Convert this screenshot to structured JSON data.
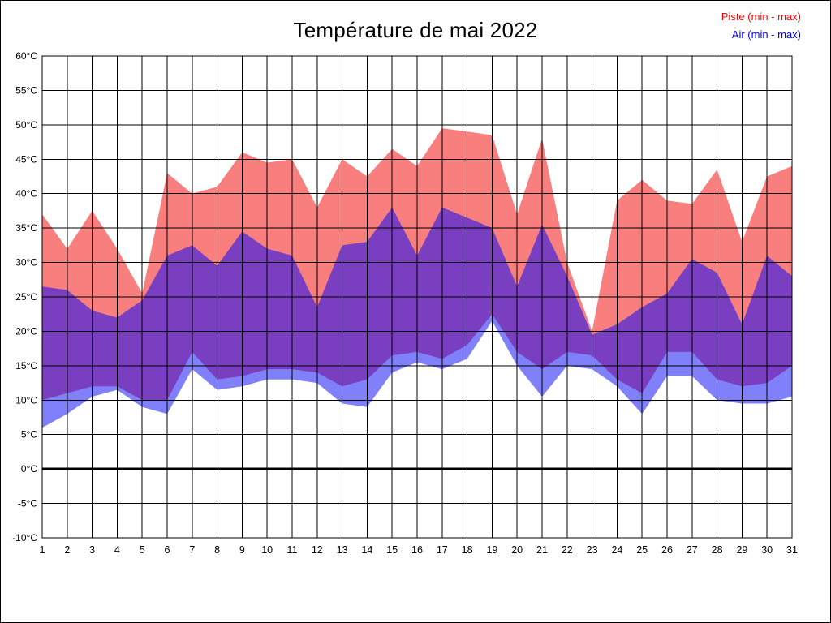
{
  "title": "Température de mai 2022",
  "legend": {
    "piste_label": "Piste (min - max)",
    "air_label": "Air (min - max)"
  },
  "chart_data": {
    "type": "area",
    "title": "Température de mai 2022",
    "xlabel": "",
    "ylabel": "",
    "x": [
      1,
      2,
      3,
      4,
      5,
      6,
      7,
      8,
      9,
      10,
      11,
      12,
      13,
      14,
      15,
      16,
      17,
      18,
      19,
      20,
      21,
      22,
      23,
      24,
      25,
      26,
      27,
      28,
      29,
      30,
      31
    ],
    "x_labels": [
      "1",
      "2",
      "3",
      "4",
      "5",
      "6",
      "7",
      "8",
      "9",
      "10",
      "11",
      "12",
      "13",
      "14",
      "15",
      "16",
      "17",
      "18",
      "19",
      "20",
      "21",
      "22",
      "23",
      "24",
      "25",
      "26",
      "27",
      "28",
      "29",
      "30",
      "31"
    ],
    "series": [
      {
        "name": "Piste max",
        "values": [
          37,
          32,
          37.5,
          32,
          25.5,
          43,
          40,
          41,
          46,
          44.5,
          45,
          38,
          45,
          42.5,
          46.5,
          44,
          49.5,
          49,
          48.5,
          37,
          48,
          30,
          20,
          39,
          42,
          39,
          38.5,
          43.5,
          33,
          42.5,
          44
        ]
      },
      {
        "name": "Piste min",
        "values": [
          10,
          11,
          12,
          12,
          10,
          10,
          17,
          13,
          13.5,
          14.5,
          14.5,
          14,
          12,
          13,
          16.5,
          17,
          16,
          18,
          22.5,
          17,
          14.5,
          17,
          16.5,
          13,
          11,
          17,
          17,
          13,
          12,
          12.5,
          15
        ]
      },
      {
        "name": "Air max",
        "values": [
          26.5,
          26,
          23,
          22,
          24.5,
          31,
          32.5,
          29.5,
          34.5,
          32,
          31,
          23.5,
          32.5,
          33,
          38,
          31,
          38,
          36.5,
          35,
          26.5,
          35.5,
          28,
          19.5,
          21,
          23.5,
          25.5,
          30.5,
          28.5,
          21,
          31,
          28
        ]
      },
      {
        "name": "Air min",
        "values": [
          6,
          8,
          10.5,
          11.5,
          9,
          8,
          14.5,
          11.5,
          12,
          13,
          13,
          12.5,
          9.5,
          9,
          14,
          15.5,
          14.5,
          16,
          21.5,
          15,
          10.5,
          15,
          14.5,
          12,
          8,
          13.5,
          13.5,
          10,
          9.5,
          9.5,
          10.5
        ]
      }
    ],
    "ylim": [
      -10,
      60
    ],
    "ytick_values": [
      60,
      55,
      50,
      45,
      40,
      35,
      30,
      25,
      20,
      15,
      10,
      5,
      0,
      -5,
      -10
    ],
    "ytick_labels": [
      "60°C",
      "55°C",
      "50°C",
      "45°C",
      "40°C",
      "35°C",
      "30°C",
      "25°C",
      "20°C",
      "15°C",
      "10°C",
      "5°C",
      "0°C",
      "-5°C",
      "-10°C"
    ],
    "grid": true,
    "zero_line": true,
    "legend_position": "top-right",
    "colors": {
      "piste_band": "#f97e7e",
      "air_band": "#8080fa",
      "overlap_band": "#7a3fc0",
      "piste_text": "#ff0000",
      "air_text": "#0000ff",
      "grid": "#000000",
      "zero_line": "#000000"
    }
  }
}
